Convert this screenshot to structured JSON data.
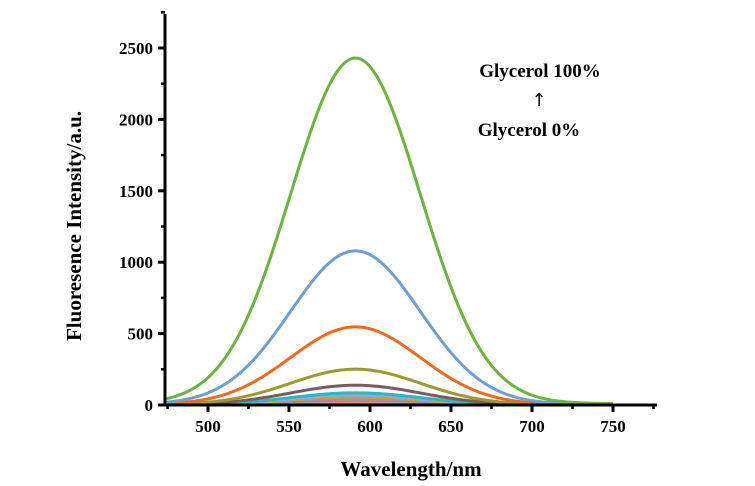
{
  "chart_data": {
    "type": "line",
    "title": "",
    "xlabel": "Wavelength/nm",
    "ylabel": "Fluoresence Intensity/a.u.",
    "xlim": [
      473,
      778
    ],
    "ylim": [
      0,
      2750
    ],
    "x_ticks": [
      500,
      550,
      600,
      650,
      700,
      750
    ],
    "x_tick_labels": [
      "500",
      "550",
      "600",
      "650",
      "700",
      "750"
    ],
    "y_ticks": [
      0,
      500,
      1000,
      1500,
      2000,
      2500
    ],
    "y_tick_labels": [
      "0",
      "500",
      "1000",
      "1500",
      "2000",
      "2500"
    ],
    "grid": false,
    "legend": "none",
    "x_range_of_curves": [
      473,
      750
    ],
    "peak_wavelength": 591,
    "band_sigma_nm": 40,
    "series": [
      {
        "name": "Glycerol 100%",
        "peak": 2420,
        "color": "#6db33f"
      },
      {
        "name": "series-2",
        "peak": 1075,
        "color": "#6f9fd1"
      },
      {
        "name": "series-3",
        "peak": 545,
        "color": "#ee6a22"
      },
      {
        "name": "series-4",
        "peak": 250,
        "color": "#9a9a2e"
      },
      {
        "name": "series-5",
        "peak": 138,
        "color": "#7e5a5e"
      },
      {
        "name": "series-6",
        "peak": 85,
        "color": "#2fb6c1"
      },
      {
        "name": "series-7",
        "peak": 68,
        "color": "#86aed8"
      },
      {
        "name": "series-8",
        "peak": 55,
        "color": "#d49e1c"
      },
      {
        "name": "series-9",
        "peak": 42,
        "color": "#a784c0"
      },
      {
        "name": "series-10",
        "peak": 32,
        "color": "#8aa0a8"
      },
      {
        "name": "series-11",
        "peak": 24,
        "color": "#e2896a"
      },
      {
        "name": "series-12",
        "peak": 17,
        "color": "#5aa0a0"
      },
      {
        "name": "Glycerol 0%",
        "peak": 12,
        "color": "#b84a4a"
      }
    ],
    "annotations": {
      "top": "Glycerol 100%",
      "arrow": "↑",
      "bottom": "Glycerol 0%"
    }
  }
}
